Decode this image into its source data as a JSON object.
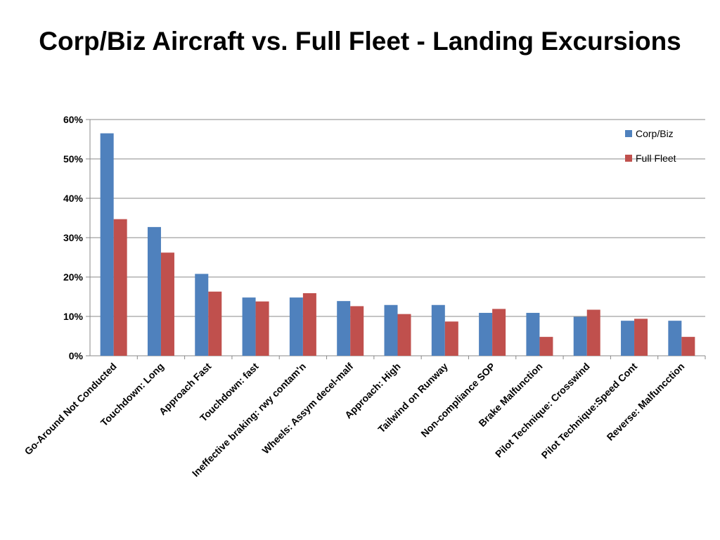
{
  "chart_data": {
    "type": "bar",
    "title": "Corp/Biz Aircraft vs. Full Fleet - Landing Excursions",
    "xlabel": "",
    "ylabel": "",
    "ylim": [
      0,
      60
    ],
    "yticks": [
      "0%",
      "10%",
      "20%",
      "30%",
      "40%",
      "50%",
      "60%"
    ],
    "grid": true,
    "legend_position": "top-right",
    "categories": [
      "Go-Around  Not Conducted",
      "Touchdown: Long",
      "Approach Fast",
      "Touchdown: fast",
      "Ineffective braking: rwy contam'n",
      "Wheels: Assym decel-malf",
      "Approach: High",
      "Tailwind on Runway",
      "Non-compliance SOP",
      "Brake Malfunction",
      "Pilot Technique: Crosswind",
      "Pilot Technique:Speed Cont",
      "Reverse: Malfuncction"
    ],
    "series": [
      {
        "name": "Corp/Biz",
        "color": "#4F81BD",
        "values": [
          56.5,
          32.7,
          20.8,
          14.8,
          14.8,
          13.9,
          12.9,
          12.9,
          10.9,
          10.9,
          9.9,
          8.9,
          8.9
        ]
      },
      {
        "name": "Full Fleet",
        "color": "#C0504D",
        "values": [
          34.7,
          26.2,
          16.3,
          13.8,
          15.9,
          12.6,
          10.6,
          8.7,
          11.9,
          4.8,
          11.7,
          9.4,
          4.8
        ]
      }
    ]
  }
}
